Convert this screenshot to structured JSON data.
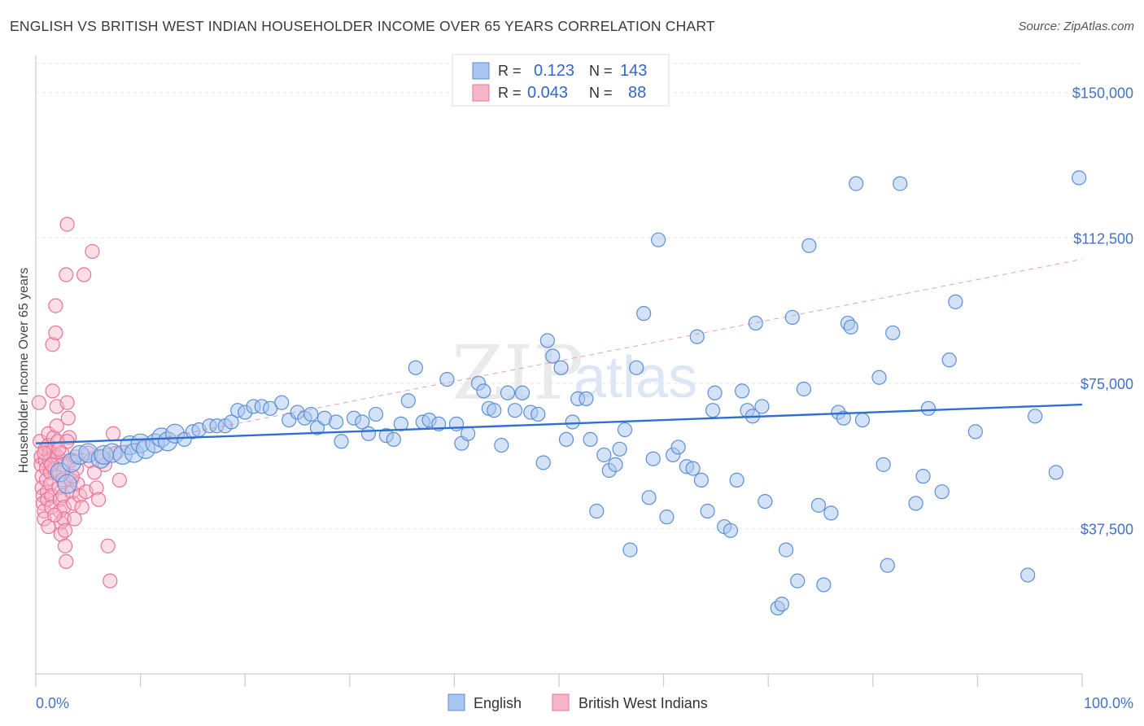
{
  "header": {
    "title": "ENGLISH VS BRITISH WEST INDIAN HOUSEHOLDER INCOME OVER 65 YEARS CORRELATION CHART",
    "source": "Source: ZipAtlas.com"
  },
  "legend_top": {
    "english": {
      "r_label": "R =",
      "r_value": "0.123",
      "n_label": "N =",
      "n_value": "143"
    },
    "bwi": {
      "r_label": "R =",
      "r_value": "0.043",
      "n_label": "N =",
      "n_value": "88"
    }
  },
  "legend_bottom": {
    "english": "English",
    "bwi": "British West Indians"
  },
  "watermark": {
    "zip": "ZIP",
    "atlas": "atlas"
  },
  "colors": {
    "english_fill": "#a9c6f0",
    "english_stroke": "#5b8fd8",
    "english_line": "#2f6fd0",
    "bwi_fill": "#f6b6c8",
    "bwi_stroke": "#e8739a",
    "bwi_line": "#e07a98",
    "tick_text": "#4472c4",
    "grid": "#e3e3e3"
  },
  "chart_data": {
    "type": "scatter",
    "title": "ENGLISH VS BRITISH WEST INDIAN HOUSEHOLDER INCOME OVER 65 YEARS CORRELATION CHART",
    "xlabel": "",
    "ylabel": "Householder Income Over 65 years",
    "xlim": [
      0,
      100
    ],
    "ylim": [
      0,
      157500
    ],
    "x_tick_labels": [
      "0.0%",
      "100.0%"
    ],
    "y_ticks": [
      37500,
      75000,
      112500,
      150000
    ],
    "y_tick_labels": [
      "$37,500",
      "$75,000",
      "$112,500",
      "$150,000"
    ],
    "grid": true,
    "legend_placement": "top-center",
    "series": [
      {
        "name": "English",
        "r": 0.123,
        "n": 143,
        "trend": {
          "x": [
            0,
            100
          ],
          "y": [
            59500,
            69500
          ],
          "style": "solid"
        },
        "points": [
          [
            2.3,
            52000
          ],
          [
            3.0,
            49000
          ],
          [
            3.4,
            54500
          ],
          [
            4.2,
            56500
          ],
          [
            5.0,
            57000
          ],
          [
            6.2,
            55500
          ],
          [
            6.5,
            56500
          ],
          [
            7.3,
            57000
          ],
          [
            8.3,
            56500
          ],
          [
            9.0,
            59000
          ],
          [
            9.4,
            57000
          ],
          [
            10.0,
            59500
          ],
          [
            10.5,
            58000
          ],
          [
            11.4,
            59500
          ],
          [
            12.0,
            61000
          ],
          [
            12.6,
            60000
          ],
          [
            13.3,
            62000
          ],
          [
            14.2,
            60500
          ],
          [
            15.0,
            62500
          ],
          [
            15.6,
            63000
          ],
          [
            16.6,
            64000
          ],
          [
            17.3,
            64000
          ],
          [
            18.1,
            64000
          ],
          [
            18.7,
            65000
          ],
          [
            19.3,
            68000
          ],
          [
            20.0,
            67500
          ],
          [
            20.8,
            69000
          ],
          [
            21.6,
            69000
          ],
          [
            22.4,
            68500
          ],
          [
            23.5,
            70000
          ],
          [
            24.2,
            65500
          ],
          [
            25.0,
            67500
          ],
          [
            25.7,
            66000
          ],
          [
            26.3,
            67000
          ],
          [
            26.9,
            63500
          ],
          [
            27.6,
            66000
          ],
          [
            28.7,
            65000
          ],
          [
            29.2,
            60000
          ],
          [
            30.4,
            66000
          ],
          [
            31.2,
            65000
          ],
          [
            31.8,
            62000
          ],
          [
            32.5,
            67000
          ],
          [
            33.5,
            61500
          ],
          [
            34.2,
            60500
          ],
          [
            34.9,
            64500
          ],
          [
            35.6,
            70500
          ],
          [
            36.3,
            79000
          ],
          [
            37.0,
            65000
          ],
          [
            37.6,
            65500
          ],
          [
            38.5,
            64500
          ],
          [
            39.3,
            76000
          ],
          [
            40.2,
            64500
          ],
          [
            40.7,
            59500
          ],
          [
            41.3,
            62000
          ],
          [
            42.3,
            75000
          ],
          [
            42.8,
            73000
          ],
          [
            43.3,
            68500
          ],
          [
            43.8,
            68000
          ],
          [
            44.5,
            59000
          ],
          [
            45.1,
            72500
          ],
          [
            45.8,
            68000
          ],
          [
            46.5,
            72500
          ],
          [
            47.3,
            67500
          ],
          [
            48.0,
            67000
          ],
          [
            48.5,
            54500
          ],
          [
            48.9,
            86000
          ],
          [
            49.4,
            82000
          ],
          [
            50.2,
            79000
          ],
          [
            50.7,
            60500
          ],
          [
            51.3,
            65000
          ],
          [
            51.8,
            71000
          ],
          [
            52.6,
            71000
          ],
          [
            53.0,
            60500
          ],
          [
            53.6,
            42000
          ],
          [
            54.3,
            56500
          ],
          [
            54.8,
            52500
          ],
          [
            55.4,
            54000
          ],
          [
            55.8,
            58000
          ],
          [
            56.3,
            63000
          ],
          [
            56.8,
            32000
          ],
          [
            57.4,
            79000
          ],
          [
            58.1,
            93000
          ],
          [
            58.6,
            45500
          ],
          [
            59.0,
            55500
          ],
          [
            59.5,
            112000
          ],
          [
            60.3,
            40500
          ],
          [
            60.9,
            56500
          ],
          [
            61.4,
            58500
          ],
          [
            62.2,
            53500
          ],
          [
            62.8,
            53000
          ],
          [
            63.2,
            87000
          ],
          [
            63.6,
            50000
          ],
          [
            64.2,
            42000
          ],
          [
            64.7,
            68000
          ],
          [
            64.9,
            72500
          ],
          [
            65.8,
            38000
          ],
          [
            66.4,
            37000
          ],
          [
            67.0,
            50000
          ],
          [
            67.5,
            73000
          ],
          [
            68.0,
            68000
          ],
          [
            68.5,
            66500
          ],
          [
            68.8,
            90500
          ],
          [
            69.4,
            69000
          ],
          [
            69.7,
            44500
          ],
          [
            70.9,
            17000
          ],
          [
            71.3,
            18000
          ],
          [
            71.7,
            32000
          ],
          [
            72.3,
            92000
          ],
          [
            72.8,
            24000
          ],
          [
            73.4,
            73500
          ],
          [
            73.9,
            110500
          ],
          [
            74.8,
            43500
          ],
          [
            75.3,
            23000
          ],
          [
            76.0,
            41500
          ],
          [
            76.7,
            67500
          ],
          [
            77.2,
            66000
          ],
          [
            77.6,
            90500
          ],
          [
            77.9,
            89500
          ],
          [
            78.4,
            126500
          ],
          [
            79.0,
            65500
          ],
          [
            80.6,
            76500
          ],
          [
            81.0,
            54000
          ],
          [
            81.4,
            28000
          ],
          [
            81.9,
            88000
          ],
          [
            82.6,
            126500
          ],
          [
            84.1,
            44000
          ],
          [
            84.8,
            51000
          ],
          [
            85.3,
            68500
          ],
          [
            86.6,
            47000
          ],
          [
            87.3,
            81000
          ],
          [
            87.9,
            96000
          ],
          [
            89.8,
            62500
          ],
          [
            94.8,
            25500
          ],
          [
            95.5,
            66500
          ],
          [
            97.5,
            52000
          ],
          [
            99.7,
            128000
          ]
        ]
      },
      {
        "name": "British West Indians",
        "r": 0.043,
        "n": 88,
        "trend": {
          "x": [
            0,
            100
          ],
          "y": [
            54500,
            107000
          ],
          "style": "dashed"
        },
        "points": [
          [
            0.3,
            70000
          ],
          [
            0.4,
            60000
          ],
          [
            0.5,
            56000
          ],
          [
            0.5,
            54000
          ],
          [
            0.6,
            51000
          ],
          [
            0.6,
            48000
          ],
          [
            0.7,
            46000
          ],
          [
            0.7,
            44000
          ],
          [
            0.8,
            42000
          ],
          [
            0.8,
            40000
          ],
          [
            0.9,
            58000
          ],
          [
            0.9,
            55000
          ],
          [
            1.0,
            53000
          ],
          [
            1.0,
            50000
          ],
          [
            1.1,
            47000
          ],
          [
            1.1,
            45000
          ],
          [
            1.2,
            62000
          ],
          [
            1.2,
            59000
          ],
          [
            1.3,
            57000
          ],
          [
            1.3,
            55000
          ],
          [
            1.4,
            52000
          ],
          [
            1.4,
            49000
          ],
          [
            1.5,
            46000
          ],
          [
            1.5,
            43000
          ],
          [
            1.6,
            73000
          ],
          [
            1.6,
            85000
          ],
          [
            1.7,
            61000
          ],
          [
            1.7,
            58000
          ],
          [
            1.8,
            56000
          ],
          [
            1.8,
            53000
          ],
          [
            1.9,
            95000
          ],
          [
            1.9,
            88000
          ],
          [
            2.0,
            69000
          ],
          [
            2.0,
            64000
          ],
          [
            2.1,
            60000
          ],
          [
            2.1,
            56000
          ],
          [
            2.2,
            52000
          ],
          [
            2.2,
            48000
          ],
          [
            2.3,
            45000
          ],
          [
            2.3,
            42000
          ],
          [
            2.4,
            39000
          ],
          [
            2.4,
            36000
          ],
          [
            2.5,
            57000
          ],
          [
            2.5,
            54000
          ],
          [
            2.6,
            50000
          ],
          [
            2.6,
            46000
          ],
          [
            2.7,
            43000
          ],
          [
            2.7,
            40000
          ],
          [
            2.8,
            37000
          ],
          [
            2.8,
            33000
          ],
          [
            2.9,
            29000
          ],
          [
            2.9,
            103000
          ],
          [
            3.0,
            116000
          ],
          [
            3.0,
            70000
          ],
          [
            3.1,
            66000
          ],
          [
            3.2,
            61000
          ],
          [
            3.3,
            55000
          ],
          [
            3.4,
            50000
          ],
          [
            3.5,
            47000
          ],
          [
            3.6,
            44000
          ],
          [
            3.7,
            40000
          ],
          [
            3.8,
            56000
          ],
          [
            3.9,
            53000
          ],
          [
            4.0,
            49000
          ],
          [
            4.2,
            46000
          ],
          [
            4.4,
            43000
          ],
          [
            4.6,
            103000
          ],
          [
            4.8,
            47000
          ],
          [
            5.0,
            57000
          ],
          [
            5.2,
            55000
          ],
          [
            5.4,
            109000
          ],
          [
            5.6,
            52000
          ],
          [
            5.8,
            48000
          ],
          [
            6.0,
            45000
          ],
          [
            6.3,
            56000
          ],
          [
            6.6,
            54000
          ],
          [
            6.9,
            33000
          ],
          [
            7.1,
            24000
          ],
          [
            7.4,
            62000
          ],
          [
            7.7,
            57000
          ],
          [
            8.0,
            50000
          ],
          [
            1.2,
            38000
          ],
          [
            1.8,
            41000
          ],
          [
            2.2,
            58000
          ],
          [
            3.0,
            60000
          ],
          [
            3.5,
            51000
          ],
          [
            0.8,
            57000
          ],
          [
            1.5,
            54000
          ]
        ]
      }
    ]
  }
}
